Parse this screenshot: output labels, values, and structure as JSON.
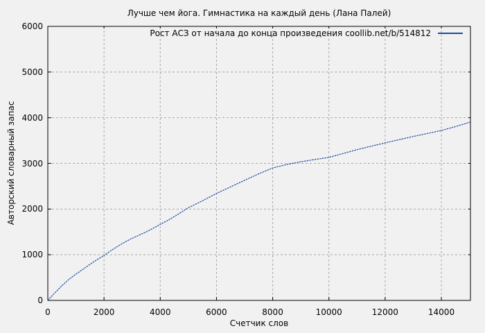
{
  "chart_data": {
    "type": "line",
    "title": "Лучше чем йога. Гимнастика на каждый день (Лана Палей)",
    "xlabel": "Счетчик слов",
    "ylabel": "Авторский словарный запас",
    "xlim": [
      0,
      15035
    ],
    "ylim": [
      0,
      6000
    ],
    "xticks": [
      0,
      2000,
      4000,
      6000,
      8000,
      10000,
      12000,
      14000
    ],
    "yticks": [
      0,
      1000,
      2000,
      3000,
      4000,
      5000,
      6000
    ],
    "grid": true,
    "legend_position": "top-right-inside",
    "series": [
      {
        "name": "Рост АСЗ от начала до конца произведения coollib.net/b/514812",
        "color": "#1a49a0",
        "points": [
          [
            0,
            0
          ],
          [
            250,
            165
          ],
          [
            500,
            320
          ],
          [
            750,
            460
          ],
          [
            1000,
            575
          ],
          [
            1250,
            680
          ],
          [
            1500,
            790
          ],
          [
            1750,
            890
          ],
          [
            2000,
            985
          ],
          [
            2250,
            1090
          ],
          [
            2500,
            1190
          ],
          [
            2750,
            1280
          ],
          [
            3000,
            1360
          ],
          [
            3250,
            1430
          ],
          [
            3500,
            1500
          ],
          [
            3750,
            1580
          ],
          [
            4000,
            1665
          ],
          [
            4250,
            1745
          ],
          [
            4500,
            1835
          ],
          [
            4750,
            1930
          ],
          [
            5000,
            2030
          ],
          [
            5500,
            2180
          ],
          [
            6000,
            2340
          ],
          [
            6500,
            2485
          ],
          [
            7000,
            2630
          ],
          [
            7500,
            2770
          ],
          [
            8000,
            2900
          ],
          [
            8500,
            2975
          ],
          [
            9000,
            3035
          ],
          [
            9500,
            3085
          ],
          [
            10000,
            3130
          ],
          [
            10500,
            3215
          ],
          [
            11000,
            3300
          ],
          [
            11500,
            3375
          ],
          [
            12000,
            3450
          ],
          [
            12500,
            3520
          ],
          [
            13000,
            3590
          ],
          [
            13500,
            3655
          ],
          [
            14000,
            3720
          ],
          [
            14500,
            3805
          ],
          [
            15035,
            3905
          ]
        ]
      }
    ]
  },
  "colors": {
    "background": "#f1f1f1",
    "gridline": "#a6a6a6",
    "axis": "#000000",
    "line": "#1a49a0"
  }
}
